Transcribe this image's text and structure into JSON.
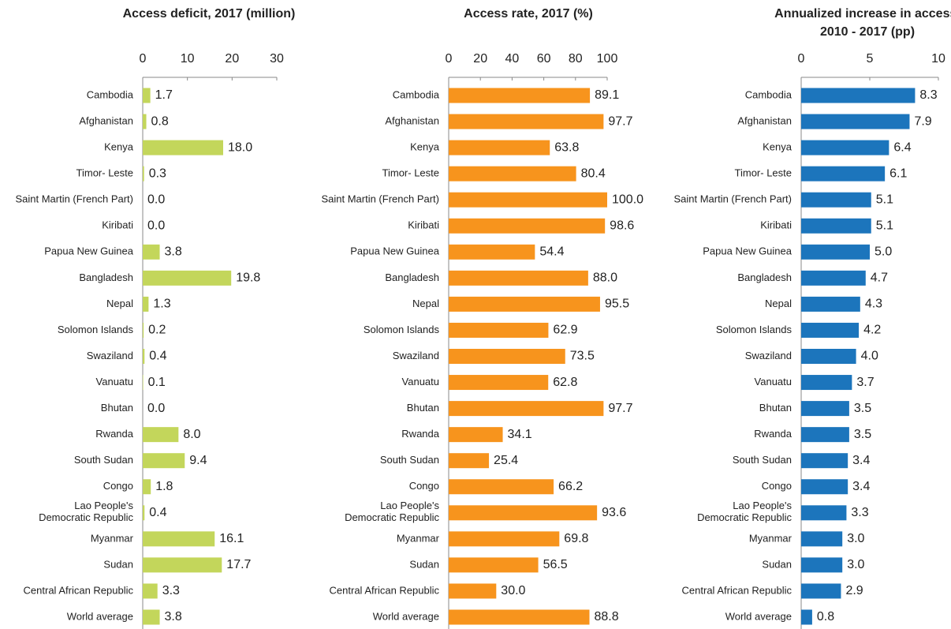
{
  "chart_data": [
    {
      "type": "bar",
      "orientation": "horizontal",
      "title": [
        "Access deficit, 2017 (million)"
      ],
      "categories": [
        "Cambodia",
        "Afghanistan",
        "Kenya",
        "Timor- Leste",
        "Saint Martin (French Part)",
        "Kiribati",
        "Papua New Guinea",
        "Bangladesh",
        "Nepal",
        "Solomon Islands",
        "Swaziland",
        "Vanuatu",
        "Bhutan",
        "Rwanda",
        "South Sudan",
        "Congo",
        "Lao People's Democratic Republic",
        "Myanmar",
        "Sudan",
        "Central African Republic",
        "World average"
      ],
      "values": [
        1.7,
        0.8,
        18.0,
        0.3,
        0.0,
        0.0,
        3.8,
        19.8,
        1.3,
        0.2,
        0.4,
        0.1,
        0.0,
        8.0,
        9.4,
        1.8,
        0.4,
        16.1,
        17.7,
        3.3,
        3.8
      ],
      "value_labels": [
        "1.7",
        "0.8",
        "18.0",
        "0.3",
        "0.0",
        "0.0",
        "3.8",
        "19.8",
        "1.3",
        "0.2",
        "0.4",
        "0.1",
        "0.0",
        "8.0",
        "9.4",
        "1.8",
        "0.4",
        "16.1",
        "17.7",
        "3.3",
        "3.8"
      ],
      "color": "#c3d65b",
      "xlim": [
        0,
        30
      ],
      "xticks": [
        0,
        10,
        20,
        30
      ]
    },
    {
      "type": "bar",
      "orientation": "horizontal",
      "title": [
        "Access rate, 2017 (%)"
      ],
      "categories": [
        "Cambodia",
        "Afghanistan",
        "Kenya",
        "Timor- Leste",
        "Saint Martin (French Part)",
        "Kiribati",
        "Papua New Guinea",
        "Bangladesh",
        "Nepal",
        "Solomon Islands",
        "Swaziland",
        "Vanuatu",
        "Bhutan",
        "Rwanda",
        "South Sudan",
        "Congo",
        "Lao People's Democratic Republic",
        "Myanmar",
        "Sudan",
        "Central African Republic",
        "World average"
      ],
      "values": [
        89.1,
        97.7,
        63.8,
        80.4,
        100.0,
        98.6,
        54.4,
        88.0,
        95.5,
        62.9,
        73.5,
        62.8,
        97.7,
        34.1,
        25.4,
        66.2,
        93.6,
        69.8,
        56.5,
        30.0,
        88.8
      ],
      "value_labels": [
        "89.1",
        "97.7",
        "63.8",
        "80.4",
        "100.0",
        "98.6",
        "54.4",
        "88.0",
        "95.5",
        "62.9",
        "73.5",
        "62.8",
        "97.7",
        "34.1",
        "25.4",
        "66.2",
        "93.6",
        "69.8",
        "56.5",
        "30.0",
        "88.8"
      ],
      "color": "#f7941d",
      "xlim": [
        0,
        100
      ],
      "xticks": [
        0,
        20,
        40,
        60,
        80,
        100
      ]
    },
    {
      "type": "bar",
      "orientation": "horizontal",
      "title": [
        "Annualized increase in access,",
        "2010 - 2017 (pp)"
      ],
      "categories": [
        "Cambodia",
        "Afghanistan",
        "Kenya",
        "Timor- Leste",
        "Saint Martin (French Part)",
        "Kiribati",
        "Papua New Guinea",
        "Bangladesh",
        "Nepal",
        "Solomon Islands",
        "Swaziland",
        "Vanuatu",
        "Bhutan",
        "Rwanda",
        "South Sudan",
        "Congo",
        "Lao People's Democratic Republic",
        "Myanmar",
        "Sudan",
        "Central African Republic",
        "World average"
      ],
      "values": [
        8.3,
        7.9,
        6.4,
        6.1,
        5.1,
        5.1,
        5.0,
        4.7,
        4.3,
        4.2,
        4.0,
        3.7,
        3.5,
        3.5,
        3.4,
        3.4,
        3.3,
        3.0,
        3.0,
        2.9,
        0.8
      ],
      "value_labels": [
        "8.3",
        "7.9",
        "6.4",
        "6.1",
        "5.1",
        "5.1",
        "5.0",
        "4.7",
        "4.3",
        "4.2",
        "4.0",
        "3.7",
        "3.5",
        "3.5",
        "3.4",
        "3.4",
        "3.3",
        "3.0",
        "3.0",
        "2.9",
        "0.8"
      ],
      "color": "#1c75bc",
      "xlim": [
        0,
        10
      ],
      "xticks": [
        0,
        5,
        10
      ]
    }
  ]
}
